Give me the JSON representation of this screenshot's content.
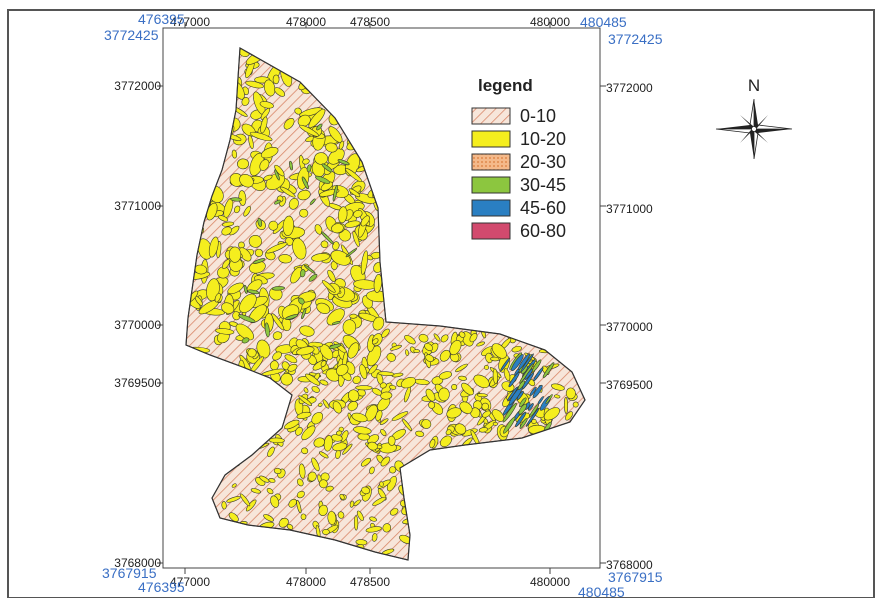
{
  "map": {
    "corner_coords": {
      "top_left_x": "476395",
      "top_left_y": "3772425",
      "top_right_x": "480485",
      "top_right_y": "3772425",
      "bottom_left_x": "476395",
      "bottom_left_y": "3767915",
      "bottom_right_x": "480485",
      "bottom_right_y": "3767915"
    },
    "x_ticks": [
      "477000",
      "478000",
      "478500",
      "480000"
    ],
    "y_ticks": [
      "3772000",
      "3771000",
      "3770000",
      "3769500",
      "3768000"
    ],
    "classes_colors": {
      "c0_10": "#f2d7c4",
      "c10_20": "#f5ee1e",
      "c20_30": "#f0a872",
      "c30_45": "#8cc63f",
      "c45_60": "#2a7fc2",
      "c60_80": "#d24a6e"
    }
  },
  "legend": {
    "title": "legend",
    "items": [
      {
        "label": "0-10",
        "color": "#f2d7c4",
        "pattern": "hatch"
      },
      {
        "label": "10-20",
        "color": "#f5ee1e",
        "pattern": "solid"
      },
      {
        "label": "20-30",
        "color": "#f0a872",
        "pattern": "dots"
      },
      {
        "label": "30-45",
        "color": "#8cc63f",
        "pattern": "solid"
      },
      {
        "label": "45-60",
        "color": "#2a7fc2",
        "pattern": "solid"
      },
      {
        "label": "60-80",
        "color": "#d24a6e",
        "pattern": "solid"
      }
    ]
  },
  "north_arrow": {
    "label": "N",
    "icon": "compass-rose-icon"
  }
}
